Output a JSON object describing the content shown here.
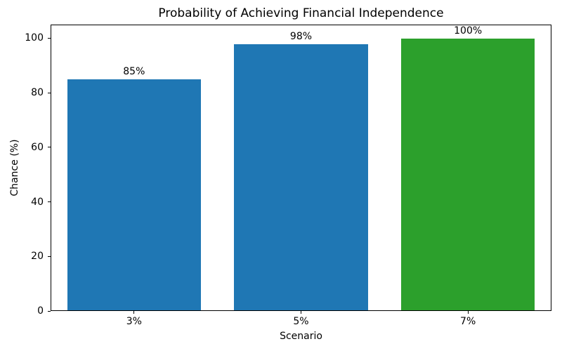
{
  "chart_data": {
    "type": "bar",
    "title": "Probability of Achieving Financial Independence",
    "xlabel": "Scenario",
    "ylabel": "Chance (%)",
    "categories": [
      "3%",
      "5%",
      "7%"
    ],
    "values": [
      85,
      98,
      100
    ],
    "bar_labels": [
      "85%",
      "98%",
      "100%"
    ],
    "bar_colors": [
      "#1f77b4",
      "#1f77b4",
      "#2ca02c"
    ],
    "yticks": [
      0,
      20,
      40,
      60,
      80,
      100
    ],
    "ylim": [
      0,
      105
    ],
    "bar_width_fraction": 0.8,
    "grid": false,
    "legend_position": "none",
    "background_color": "#ffffff",
    "spine_color": "#000000",
    "text_color": "#000000"
  }
}
